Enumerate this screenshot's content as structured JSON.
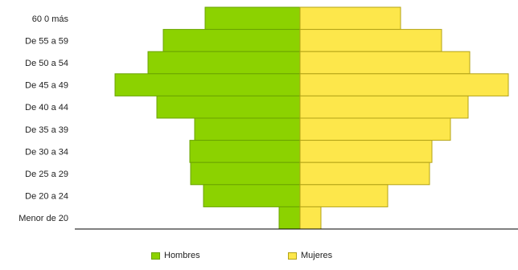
{
  "chart_data": {
    "type": "bar",
    "orientation": "horizontal",
    "layout": "population-pyramid",
    "categories": [
      "60 0 más",
      "De 55 a 59",
      "De 50 a  54",
      "De 45 a 49",
      "De 40 a 44",
      "De 35 a 39",
      "De 30 a 34",
      "De 25 a 29",
      "De 20 a 24",
      "Menor de 20"
    ],
    "series": [
      {
        "name": "Hombres",
        "side": "left",
        "color": "#8cd200",
        "stroke": "#6aa300",
        "values": [
          118,
          170,
          189,
          230,
          178,
          131,
          137,
          136,
          120,
          26
        ]
      },
      {
        "name": "Mujeres",
        "side": "right",
        "color": "#fde74b",
        "stroke": "#b3a317",
        "values": [
          125,
          176,
          211,
          259,
          209,
          187,
          164,
          161,
          109,
          26
        ]
      }
    ],
    "legend_position": "bottom",
    "grid": false
  }
}
